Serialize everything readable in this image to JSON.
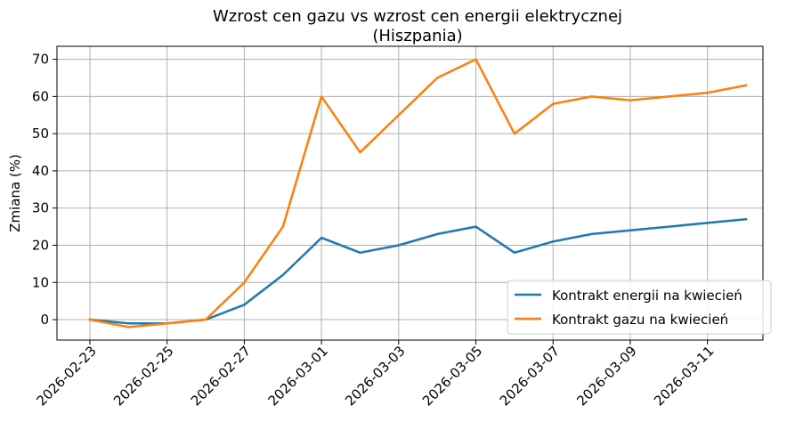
{
  "chart_data": {
    "type": "line",
    "title_lines": [
      "Wzrost cen gazu vs wzrost cen energii elektrycznej",
      "(Hiszpania)"
    ],
    "xlabel": "",
    "ylabel": "Zmiana (%)",
    "ylim": [
      -5.5,
      73.5
    ],
    "y_ticks": [
      0,
      10,
      20,
      30,
      40,
      50,
      60,
      70
    ],
    "x": [
      "2026-02-23",
      "2026-02-24",
      "2026-02-25",
      "2026-02-26",
      "2026-02-27",
      "2026-02-28",
      "2026-03-01",
      "2026-03-02",
      "2026-03-03",
      "2026-03-04",
      "2026-03-05",
      "2026-03-06",
      "2026-03-07",
      "2026-03-08",
      "2026-03-09",
      "2026-03-10",
      "2026-03-11",
      "2026-03-12"
    ],
    "x_ticks": [
      "2026-02-23",
      "2026-02-25",
      "2026-02-27",
      "2026-03-01",
      "2026-03-03",
      "2026-03-05",
      "2026-03-07",
      "2026-03-09",
      "2026-03-11"
    ],
    "grid": true,
    "legend_position": "bottom-right",
    "series": [
      {
        "name": "Kontrakt energii na kwiecień",
        "color": "#1f77b4",
        "values": [
          0,
          -1,
          -1,
          0,
          4,
          12,
          22,
          18,
          20,
          23,
          25,
          18,
          21,
          23,
          24,
          25,
          26,
          27
        ]
      },
      {
        "name": "Kontrakt gazu na kwiecień",
        "color": "#ff7f0e",
        "values": [
          0,
          -2,
          -1,
          0,
          10,
          25,
          60,
          45,
          55,
          65,
          70,
          50,
          58,
          60,
          59,
          60,
          61,
          63
        ]
      }
    ]
  }
}
